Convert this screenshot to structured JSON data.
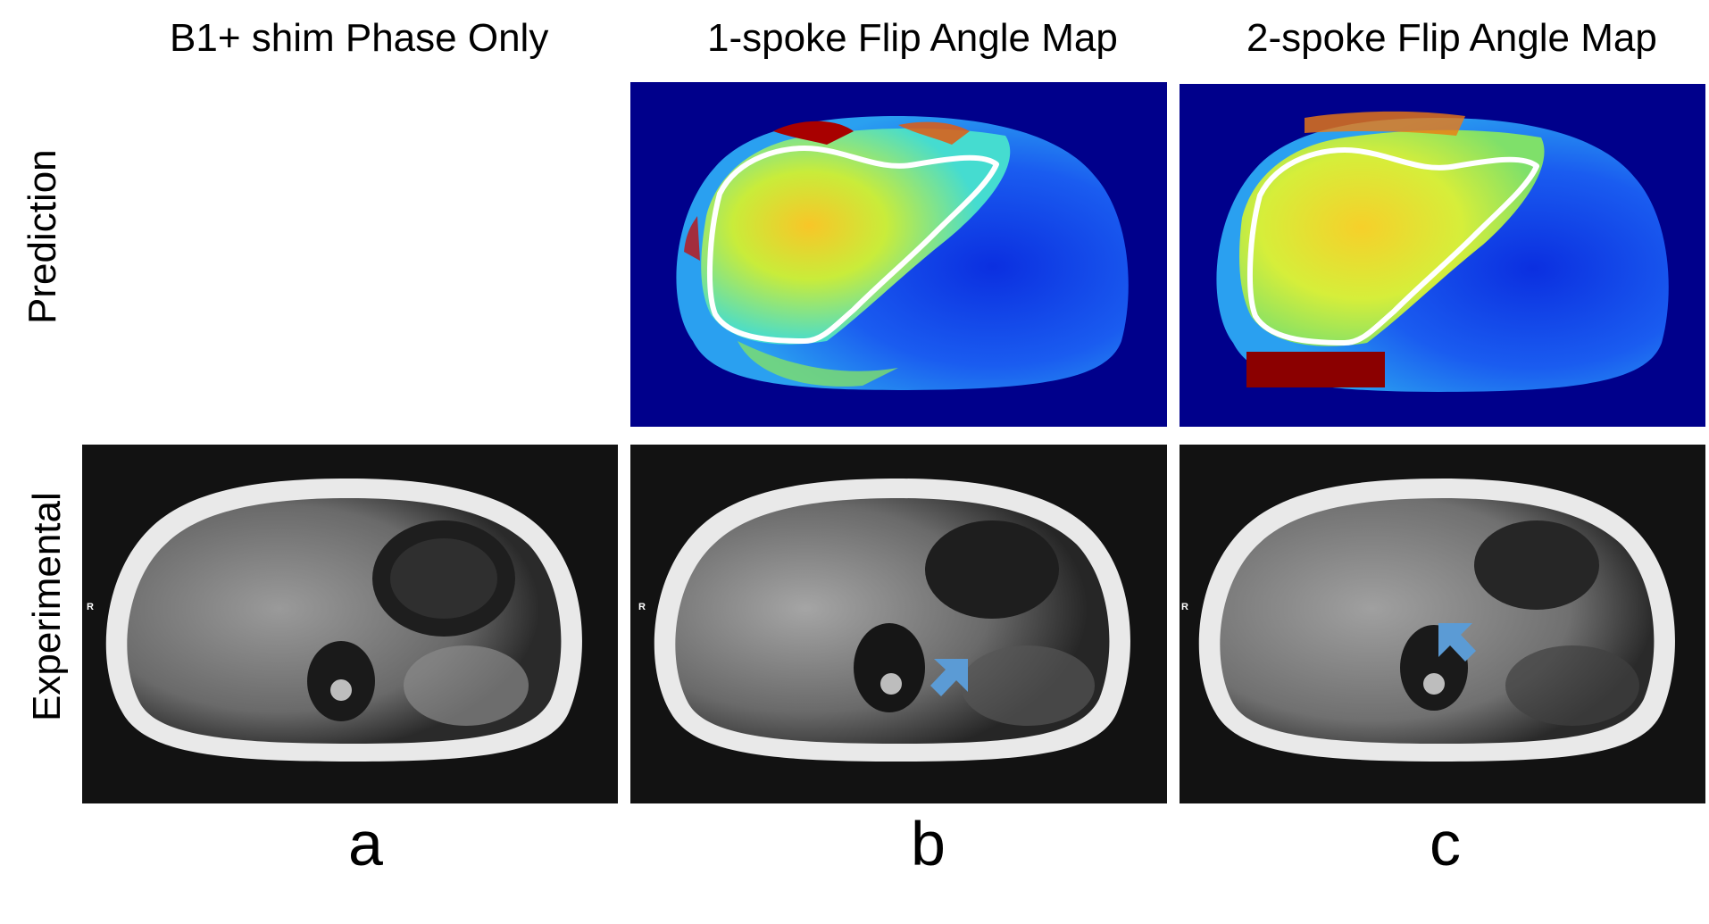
{
  "columns": [
    {
      "title": "B1+ shim Phase Only",
      "letter": "a"
    },
    {
      "title": "1-spoke Flip Angle Map",
      "letter": "b"
    },
    {
      "title": "2-spoke Flip Angle Map",
      "letter": "c"
    }
  ],
  "rows": [
    {
      "label": "Prediction"
    },
    {
      "label": "Experimental"
    }
  ],
  "panels": {
    "mri_orientation_marker": "R",
    "colors": {
      "colormap_background": "#00008b",
      "colormap_low": "#0a2fd8",
      "colormap_mid": "#2fd0e8",
      "colormap_high": "#f4e21a",
      "colormap_max": "#9b0000",
      "liver_outline": "#ffffff",
      "mri_background": "#121212",
      "arrow": "#5b9bd5"
    },
    "annotations": [
      {
        "panel": "experimental-b",
        "icon": "arrow-icon"
      },
      {
        "panel": "experimental-c",
        "icon": "arrow-icon"
      }
    ]
  }
}
